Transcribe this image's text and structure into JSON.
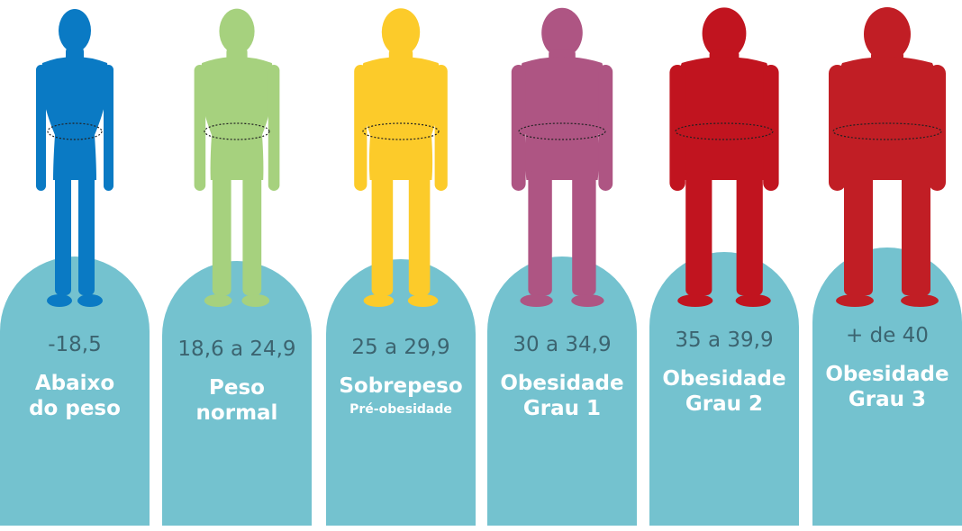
{
  "categories": [
    {
      "range": "-18,5",
      "label1": "Abaixo",
      "label2": "do peso",
      "sublabel": "",
      "color": "#0a7ac4",
      "build": 0.0
    },
    {
      "range": "18,6 a 24,9",
      "label1": "Peso",
      "label2": "normal",
      "sublabel": "",
      "color": "#a6d17e",
      "build": 0.2
    },
    {
      "range": "25 a 29,9",
      "label1": "Sobrepeso",
      "label2": "",
      "sublabel": "Pré-obesidade",
      "color": "#fccb2a",
      "build": 0.4
    },
    {
      "range": "30 a 34,9",
      "label1": "Obesidade",
      "label2": "Grau 1",
      "sublabel": "",
      "color": "#ae5583",
      "build": 0.6
    },
    {
      "range": "35 a 39,9",
      "label1": "Obesidade",
      "label2": "Grau 2",
      "sublabel": "",
      "color": "#c1141f",
      "build": 0.8
    },
    {
      "range": "+ de 40",
      "label1": "Obesidade",
      "label2": "Grau 3",
      "sublabel": "",
      "color": "#c11e25",
      "build": 1.0
    }
  ],
  "pedestal_color": "#74c2cf"
}
